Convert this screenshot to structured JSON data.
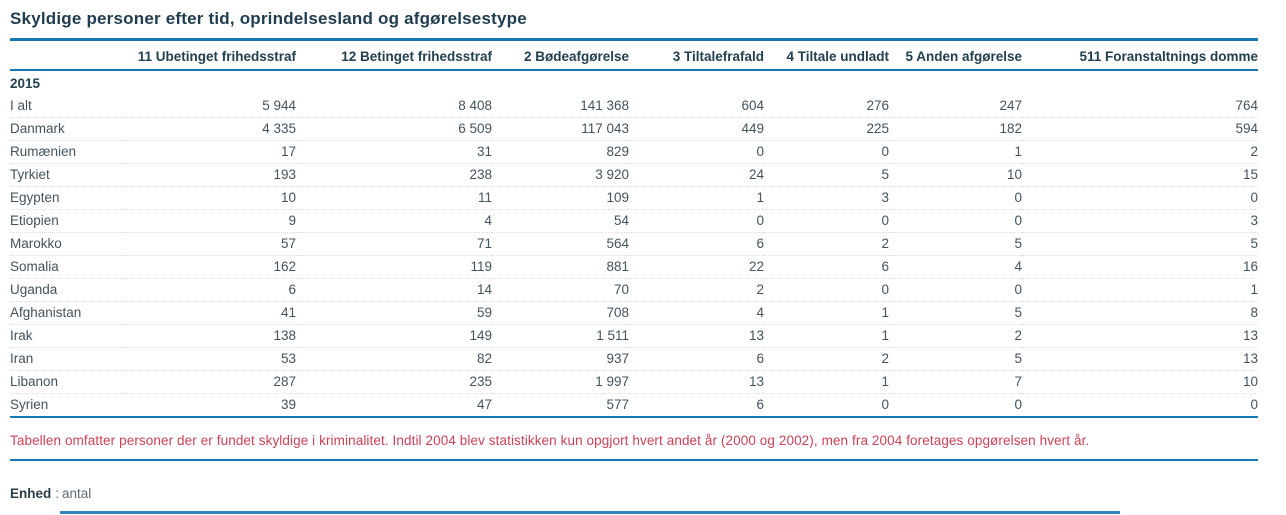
{
  "title": "Skyldige personer efter tid, oprindelsesland og afgørelsestype",
  "table": {
    "columns": [
      "11 Ubetinget frihedsstraf",
      "12 Betinget frihedsstraf",
      "2 Bødeafgørelse",
      "3 Tiltalefrafald",
      "4 Tiltale undladt",
      "5 Anden afgørelse",
      "511 Foranstaltnings domme"
    ],
    "group_label": "2015",
    "rows": [
      {
        "label": "I alt",
        "values": [
          "5 944",
          "8 408",
          "141 368",
          "604",
          "276",
          "247",
          "764"
        ]
      },
      {
        "label": "Danmark",
        "values": [
          "4 335",
          "6 509",
          "117 043",
          "449",
          "225",
          "182",
          "594"
        ]
      },
      {
        "label": "Rumænien",
        "values": [
          "17",
          "31",
          "829",
          "0",
          "0",
          "1",
          "2"
        ]
      },
      {
        "label": "Tyrkiet",
        "values": [
          "193",
          "238",
          "3 920",
          "24",
          "5",
          "10",
          "15"
        ]
      },
      {
        "label": "Egypten",
        "values": [
          "10",
          "11",
          "109",
          "1",
          "3",
          "0",
          "0"
        ]
      },
      {
        "label": "Etiopien",
        "values": [
          "9",
          "4",
          "54",
          "0",
          "0",
          "0",
          "3"
        ]
      },
      {
        "label": "Marokko",
        "values": [
          "57",
          "71",
          "564",
          "6",
          "2",
          "5",
          "5"
        ]
      },
      {
        "label": "Somalia",
        "values": [
          "162",
          "119",
          "881",
          "22",
          "6",
          "4",
          "16"
        ]
      },
      {
        "label": "Uganda",
        "values": [
          "6",
          "14",
          "70",
          "2",
          "0",
          "0",
          "1"
        ]
      },
      {
        "label": "Afghanistan",
        "values": [
          "41",
          "59",
          "708",
          "4",
          "1",
          "5",
          "8"
        ]
      },
      {
        "label": "Irak",
        "values": [
          "138",
          "149",
          "1 511",
          "13",
          "1",
          "2",
          "13"
        ]
      },
      {
        "label": "Iran",
        "values": [
          "53",
          "82",
          "937",
          "6",
          "2",
          "5",
          "13"
        ]
      },
      {
        "label": "Libanon",
        "values": [
          "287",
          "235",
          "1 997",
          "13",
          "1",
          "7",
          "10"
        ]
      },
      {
        "label": "Syrien",
        "values": [
          "39",
          "47",
          "577",
          "6",
          "0",
          "0",
          "0"
        ]
      }
    ]
  },
  "footnote": "Tabellen omfatter personer der er fundet skyldige i kriminalitet. Indtil 2004 blev statistikken kun opgjort hvert andet år (2000 og 2002), men fra 2004 foretages opgørelsen hvert år.",
  "unit": {
    "label": "Enhed",
    "separator": ":",
    "value": "antal"
  },
  "colors": {
    "accent_blue": "#1878b4",
    "title_text": "#1f3d4f",
    "body_text": "#44535d",
    "note_red": "#cc4257"
  }
}
